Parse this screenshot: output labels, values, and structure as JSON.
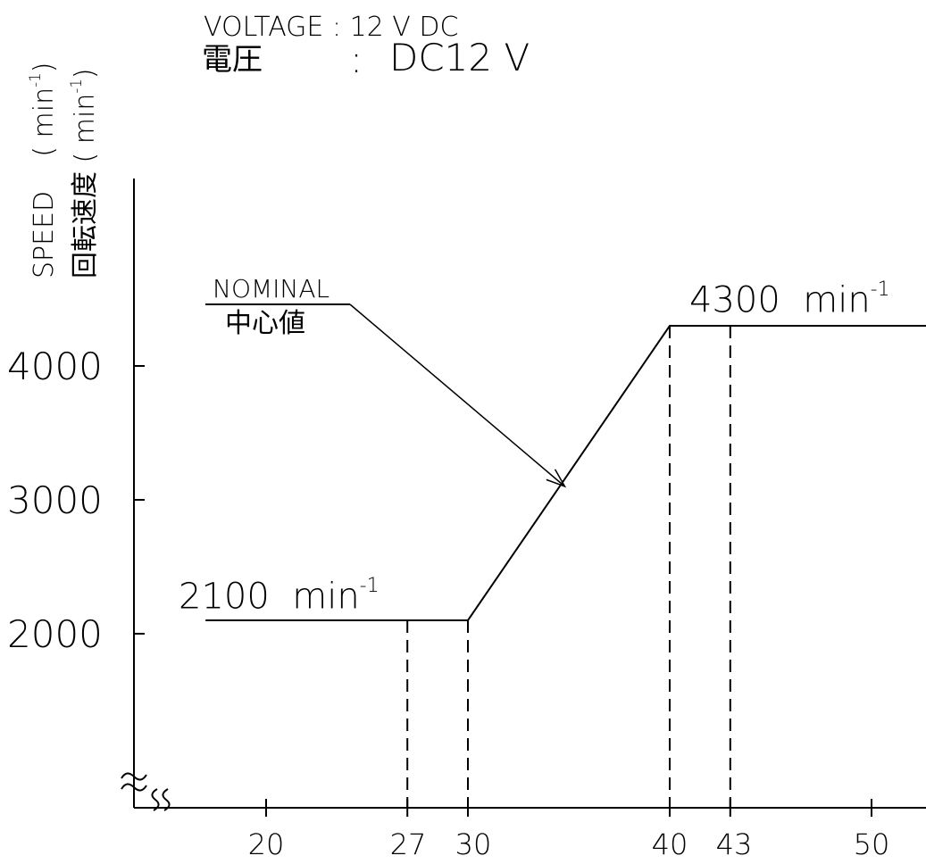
{
  "chart_data": {
    "type": "line",
    "header": {
      "line1_label": "VOLTAGE",
      "line1_sep": ":",
      "line1_value": "12 V DC",
      "line2_label": "電圧",
      "line2_sep": ":",
      "line2_value": "DC12 V"
    },
    "ylabel": {
      "line1_text": "SPEED",
      "line1_unit_open": "( min",
      "line1_unit_exp": "-1",
      "line1_unit_close": ")",
      "line2_text": "回転速度",
      "line2_unit_open": "( min",
      "line2_unit_exp": "-1",
      "line2_unit_close": ")"
    },
    "x_ticks": [
      20,
      27,
      30,
      40,
      43,
      50
    ],
    "y_ticks": [
      2000,
      3000,
      4000
    ],
    "xlim": [
      15,
      54
    ],
    "ylim": [
      1000,
      5400
    ],
    "series": [
      {
        "name": "NOMINAL",
        "x": [
          17,
          30,
          40,
          54
        ],
        "y": [
          2100,
          2100,
          4300,
          4300
        ]
      }
    ],
    "dashed_verticals": [
      {
        "x": 27,
        "y": 2100
      },
      {
        "x": 30,
        "y": 2100
      },
      {
        "x": 40,
        "y": 4300
      },
      {
        "x": 43,
        "y": 4300
      }
    ],
    "annotations": {
      "low_value": "2100",
      "low_unit": "min",
      "low_exp": "-1",
      "high_value": "4300",
      "high_unit": "min",
      "high_exp": "-1",
      "nominal_en": "NOMINAL",
      "nominal_ja": "中心値",
      "nominal_arrow_target": {
        "x": 34.8,
        "y": 3100
      }
    },
    "axis_break": true,
    "grid": false
  }
}
